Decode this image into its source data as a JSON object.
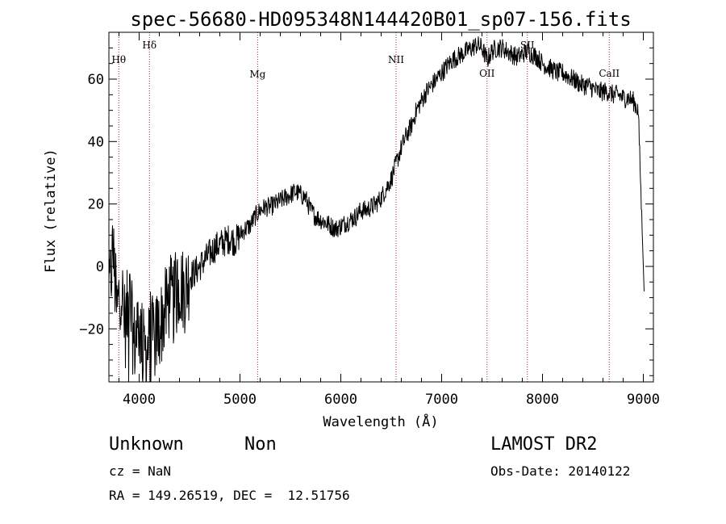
{
  "chart_data": {
    "type": "line",
    "title": "spec-56680-HD095348N144420B01_sp07-156.fits",
    "xlabel": "Wavelength (Å)",
    "ylabel": "Flux (relative)",
    "xlim": [
      3700,
      9100
    ],
    "ylim": [
      -37,
      75
    ],
    "x_ticks": [
      4000,
      5000,
      6000,
      7000,
      8000,
      9000
    ],
    "y_ticks": [
      -20,
      0,
      20,
      40,
      60
    ],
    "grid": false,
    "line_color": "#000000",
    "marker_color": "#b22222",
    "lines": [
      {
        "label": "Hθ",
        "wavelength": 3798
      },
      {
        "label": "Hδ",
        "wavelength": 4102
      },
      {
        "label": "Mg",
        "wavelength": 5175
      },
      {
        "label": "NII",
        "wavelength": 6548
      },
      {
        "label": "OII",
        "wavelength": 7450
      },
      {
        "label": "SII",
        "wavelength": 7850
      },
      {
        "label": "CaII",
        "wavelength": 8662
      }
    ],
    "series": [
      {
        "x": [
          3700,
          3740,
          3780,
          3820,
          3860,
          3900,
          3950,
          4000,
          4050,
          4100,
          4150,
          4200,
          4250,
          4300,
          4350,
          4400,
          4450,
          4500,
          4550,
          4600,
          4650,
          4700,
          4750,
          4800,
          4850,
          4900,
          4950,
          5000,
          5050,
          5100,
          5150,
          5200,
          5250,
          5300,
          5350,
          5400,
          5450,
          5500,
          5550,
          5600,
          5650,
          5700,
          5750,
          5800,
          5850,
          5900,
          5950,
          6000,
          6050,
          6100,
          6150,
          6200,
          6250,
          6300,
          6350,
          6400,
          6450,
          6500,
          6550,
          6600,
          6650,
          6700,
          6750,
          6800,
          6850,
          6900,
          6950,
          7000,
          7050,
          7100,
          7150,
          7200,
          7250,
          7300,
          7350,
          7400,
          7450,
          7500,
          7550,
          7600,
          7650,
          7700,
          7750,
          7800,
          7850,
          7900,
          7950,
          8000,
          8050,
          8100,
          8150,
          8200,
          8250,
          8300,
          8350,
          8400,
          8450,
          8500,
          8550,
          8600,
          8650,
          8700,
          8750,
          8800,
          8850,
          8900,
          8950,
          8980,
          9000,
          9010
        ],
        "y": [
          -10,
          5,
          -15,
          -5,
          -20,
          -10,
          -25,
          -18,
          -28,
          -25,
          -22,
          -20,
          -15,
          -10,
          -12,
          -5,
          -8,
          -3,
          -2,
          0,
          2,
          4,
          6,
          7,
          8,
          9,
          8,
          10,
          12,
          13,
          16,
          18,
          19,
          19,
          20,
          21,
          22,
          23,
          24,
          23,
          22,
          18,
          16,
          15,
          14,
          13,
          12,
          13,
          14,
          15,
          16,
          18,
          18,
          19,
          20,
          22,
          25,
          28,
          33,
          38,
          42,
          45,
          50,
          53,
          56,
          58,
          60,
          62,
          64,
          66,
          67,
          68,
          69,
          70,
          71,
          70,
          66,
          69,
          70,
          70,
          69,
          68,
          67,
          68,
          69,
          68,
          67,
          65,
          64,
          63,
          62,
          62,
          61,
          60,
          59,
          58,
          58,
          57,
          56,
          56,
          56,
          55,
          55,
          54,
          54,
          53,
          50,
          20,
          0,
          -10
        ]
      }
    ]
  },
  "footer": {
    "object_class": "Unknown",
    "object_subclass": "Non",
    "survey": "LAMOST DR2",
    "cz": "cz = NaN",
    "obs_date": "Obs-Date: 20140122",
    "coords": "RA = 149.26519, DEC =  12.51756"
  }
}
